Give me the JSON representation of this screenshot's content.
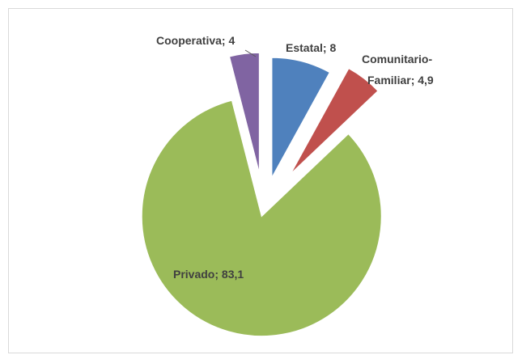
{
  "chart_data": {
    "type": "pie",
    "exploded": true,
    "slices": [
      {
        "label": "Estatal",
        "value": 8,
        "color": "#4f81bd"
      },
      {
        "label": "Comunitario-Familiar",
        "value": 4.9,
        "color": "#c0504d"
      },
      {
        "label": "Privado",
        "value": 83.1,
        "color": "#9bbb59"
      },
      {
        "label": "Cooperativa",
        "value": 4,
        "color": "#8064a2"
      }
    ],
    "data_labels": {
      "estatal": "Estatal; 8",
      "comunitario_line1": "Comunitario-",
      "comunitario_line2": "Familiar; 4,9",
      "privado": "Privado; 83,1",
      "cooperativa": "Cooperativa; 4"
    },
    "legend": "none"
  }
}
